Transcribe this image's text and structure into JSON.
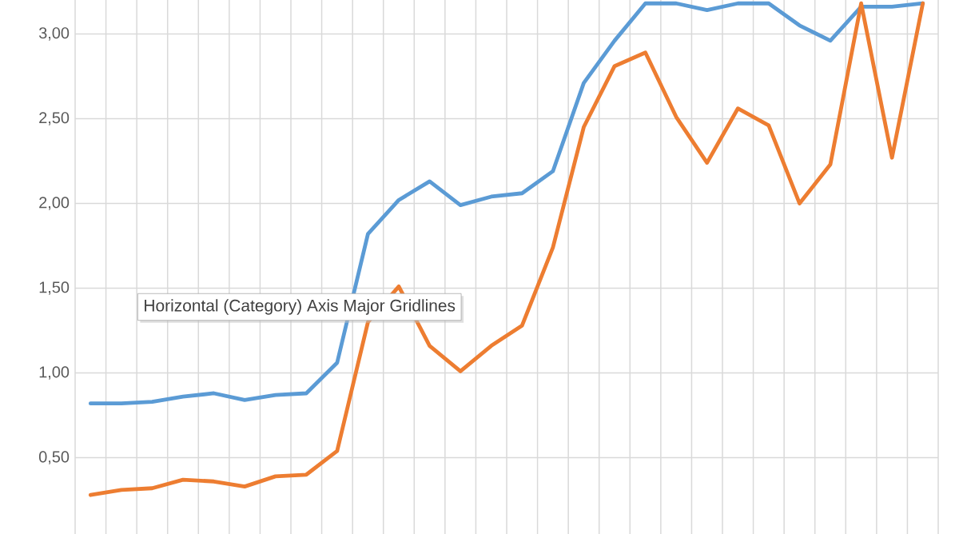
{
  "chart_data": {
    "type": "line",
    "categories": [
      null,
      null,
      null,
      null,
      null,
      null,
      null,
      null,
      null,
      null,
      null,
      null,
      null,
      null,
      null,
      null,
      null,
      null,
      null,
      null,
      null,
      null,
      null,
      null,
      null,
      null,
      null,
      null
    ],
    "series": [
      {
        "color": "#5b9bd5",
        "values": [
          0.82,
          0.82,
          0.83,
          0.86,
          0.88,
          0.84,
          0.87,
          0.88,
          1.06,
          1.82,
          2.02,
          2.13,
          1.99,
          2.04,
          2.06,
          2.19,
          2.71,
          2.96,
          3.18,
          3.18,
          3.14,
          3.18,
          3.18,
          3.05,
          2.96,
          3.16,
          3.16,
          3.18
        ]
      },
      {
        "color": "#ed7d31",
        "values": [
          0.28,
          0.31,
          0.32,
          0.37,
          0.36,
          0.33,
          0.39,
          0.4,
          0.54,
          1.3,
          1.51,
          1.16,
          1.01,
          1.16,
          1.28,
          1.74,
          2.45,
          2.81,
          2.89,
          2.51,
          2.24,
          2.56,
          2.46,
          2.0,
          2.23,
          3.18,
          2.27,
          3.18
        ]
      }
    ],
    "ylim": [
      0.05,
      3.2
    ],
    "yticks": [
      {
        "value": 0.5,
        "label": "0,50"
      },
      {
        "value": 1.0,
        "label": "1,00"
      },
      {
        "value": 1.5,
        "label": "1,50"
      },
      {
        "value": 2.0,
        "label": "2,00"
      },
      {
        "value": 2.5,
        "label": "2,50"
      },
      {
        "value": 3.0,
        "label": "3,00"
      }
    ],
    "grid": true,
    "tick_labels": "y",
    "annotations": [
      "Horizontal (Category) Axis Major Gridlines"
    ]
  }
}
